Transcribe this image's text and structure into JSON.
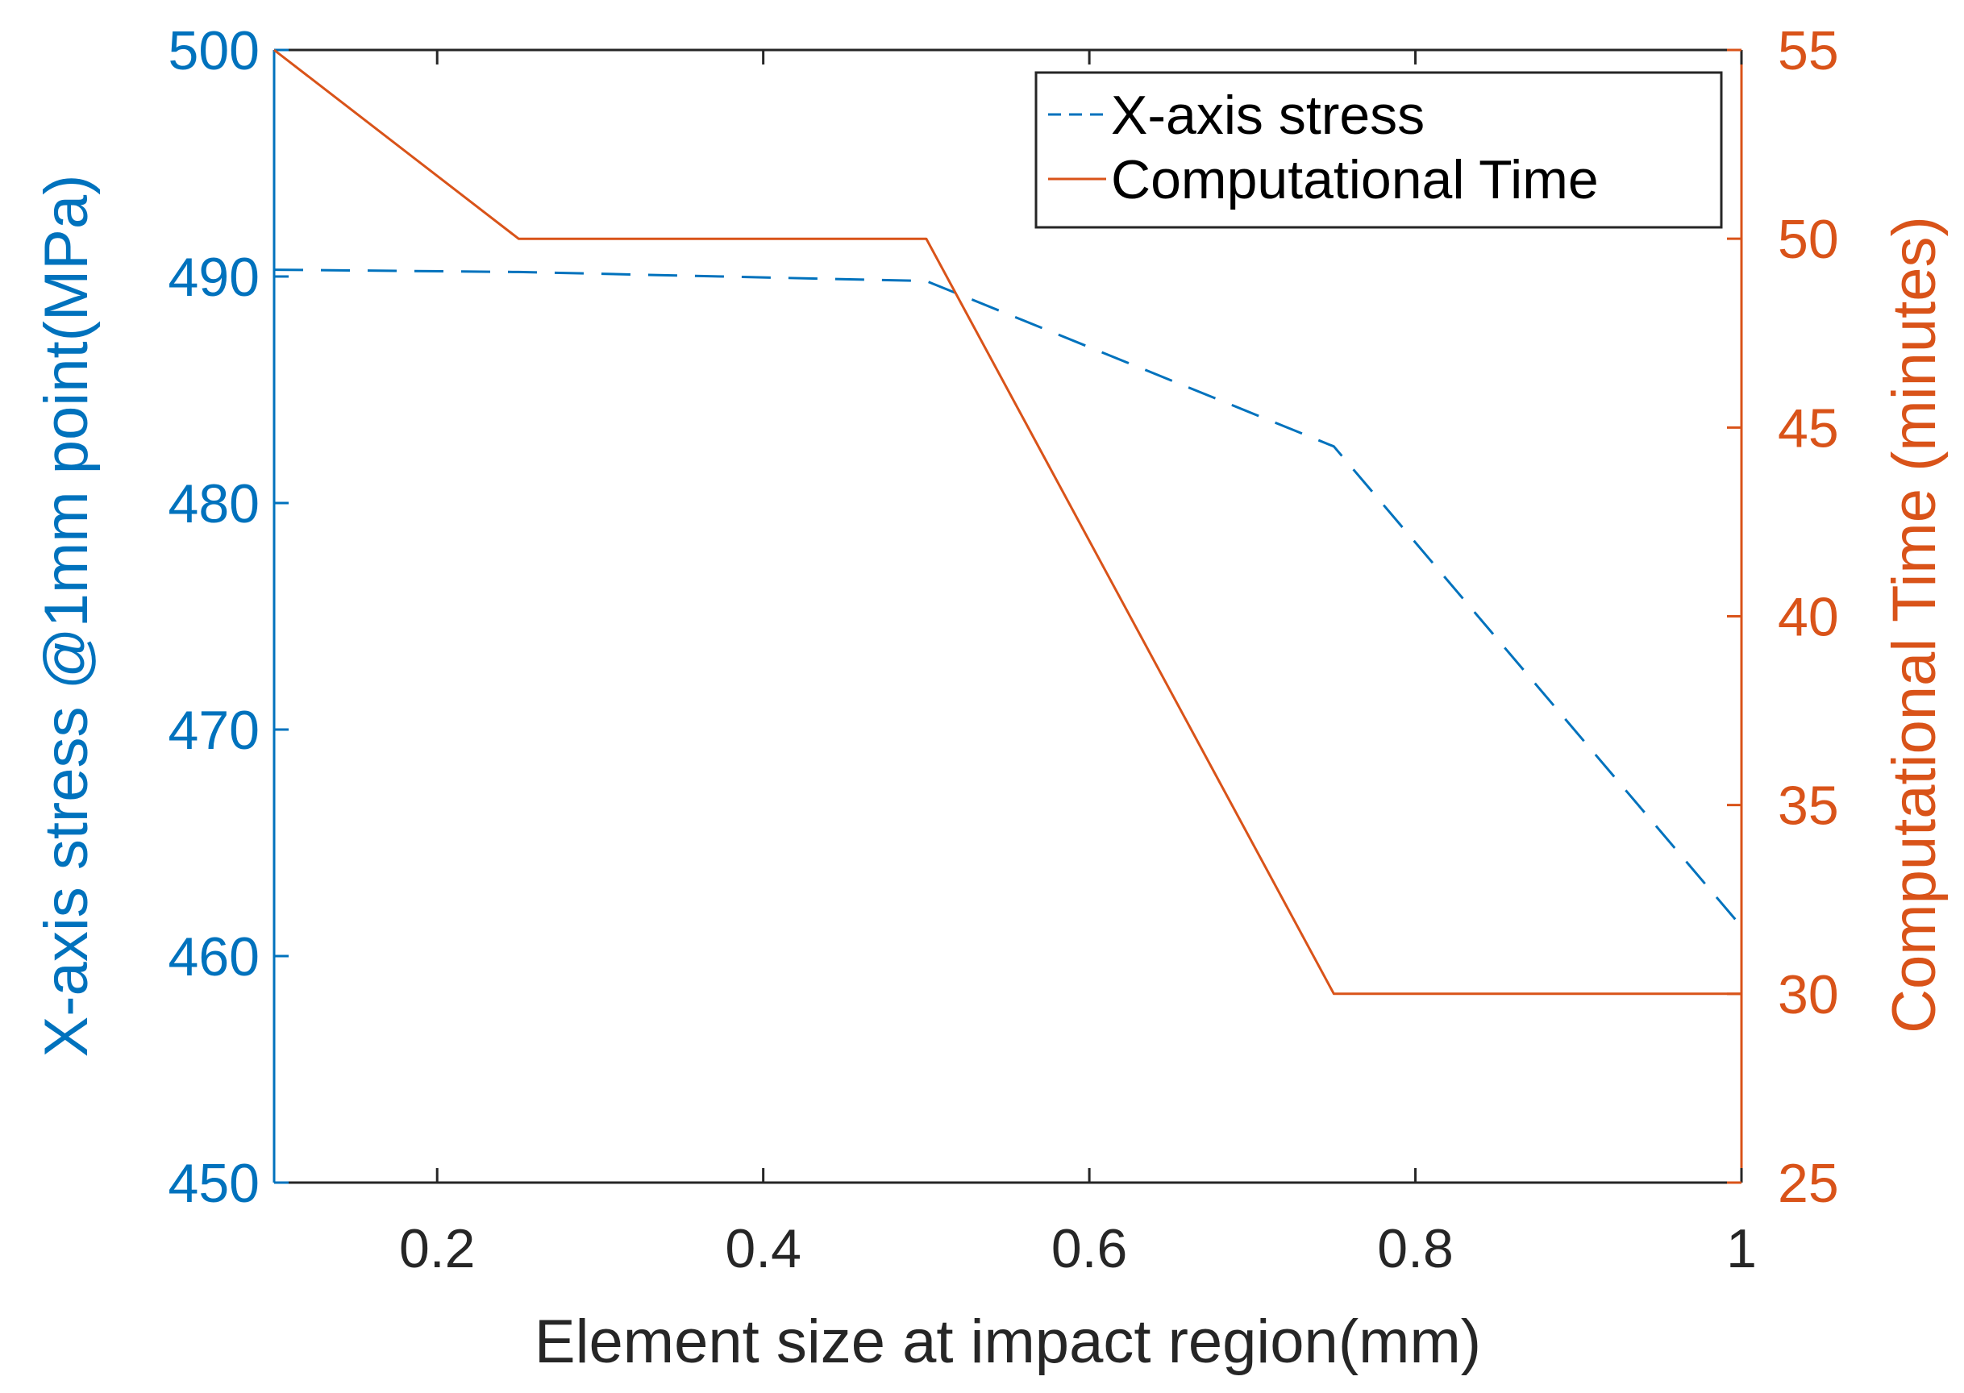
{
  "chart_data": {
    "type": "line",
    "title": "",
    "xlabel": "Element size at impact region(mm)",
    "ylabel_left": "X-axis stress @1mm point(MPa)",
    "ylabel_right": "Computational Time (minutes)",
    "xlim": [
      0.1,
      1.0
    ],
    "ylim_left": [
      450,
      500
    ],
    "ylim_right": [
      25,
      55
    ],
    "x_ticks": [
      "0.2",
      "0.4",
      "0.6",
      "0.8",
      "1"
    ],
    "y_left_ticks": [
      "450",
      "460",
      "470",
      "480",
      "490",
      "500"
    ],
    "y_right_ticks": [
      "25",
      "30",
      "35",
      "40",
      "45",
      "50",
      "55"
    ],
    "grid": false,
    "legend_position": "top-right",
    "colors": {
      "stress": "#0072BD",
      "time": "#D95319",
      "axis": "#262626"
    },
    "series": [
      {
        "name": "X-axis stress",
        "axis": "left",
        "style": "dashed",
        "x": [
          0.1,
          0.25,
          0.5,
          0.75,
          1.0
        ],
        "values": [
          490.3,
          490.2,
          489.8,
          482.5,
          461.3
        ]
      },
      {
        "name": "Computational Time",
        "axis": "right",
        "style": "solid",
        "x": [
          0.1,
          0.25,
          0.5,
          0.75,
          1.0
        ],
        "values": [
          55,
          50,
          50,
          30,
          30
        ]
      }
    ]
  }
}
